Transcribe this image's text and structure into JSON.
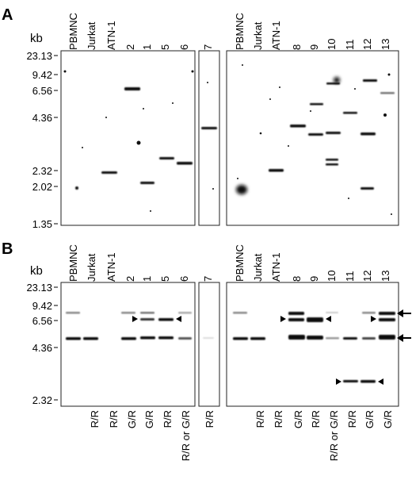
{
  "panel_a": {
    "letter": "A",
    "kb_label": "kb",
    "markers": [
      "23.13",
      "9.42",
      "6.56",
      "4.36",
      "2.32",
      "2.02",
      "1.35"
    ],
    "lanes": [
      "PBMNC",
      "Jurkat",
      "ATN-1",
      "2",
      "1",
      "5",
      "6",
      "7",
      "PBMNC",
      "Jurkat",
      "ATN-1",
      "8",
      "9",
      "10",
      "11",
      "12",
      "13"
    ]
  },
  "panel_b": {
    "letter": "B",
    "kb_label": "kb",
    "markers": [
      "23.13",
      "9.42",
      "6.56",
      "4.36",
      "2.32"
    ],
    "lanes": [
      "PBMNC",
      "Jurkat",
      "ATN-1",
      "2",
      "1",
      "5",
      "6",
      "7",
      "PBMNC",
      "Jurkat",
      "ATN-1",
      "8",
      "9",
      "10",
      "11",
      "12",
      "13"
    ],
    "genotypes": [
      "",
      "R/R",
      "R/R",
      "G/R",
      "G/R",
      "R/R",
      "R/R or G/R",
      "R/R",
      "",
      "R/R",
      "R/R",
      "G/R",
      "R/R",
      "R/R or G/R",
      "R/R",
      "G/R",
      "G/R"
    ]
  }
}
